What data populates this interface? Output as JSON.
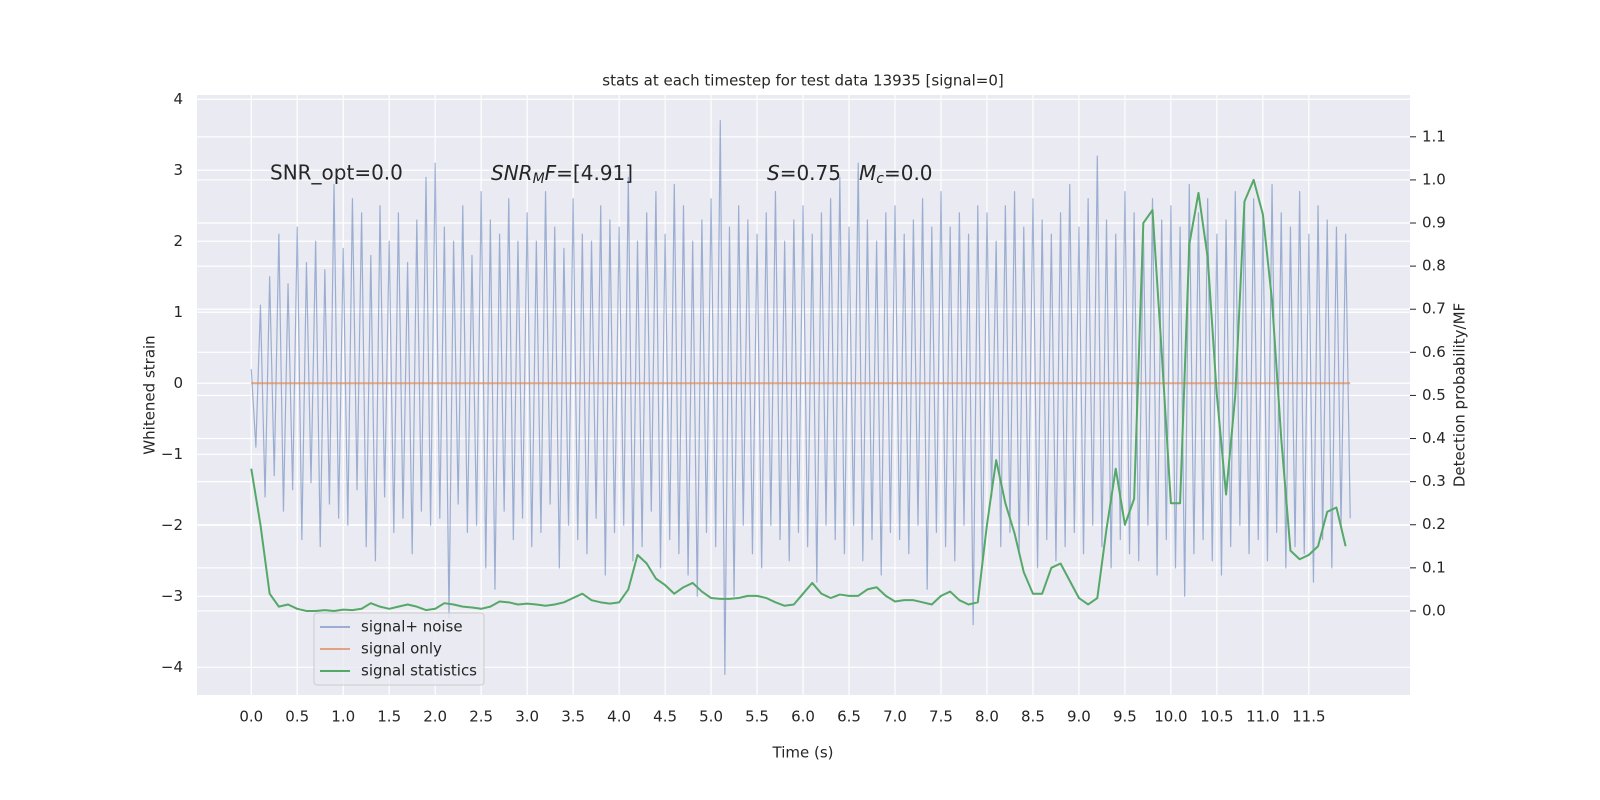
{
  "chart_data": {
    "type": "line",
    "title": "stats at each timestep for test data 13935 [signal=0]",
    "xlabel": "Time (s)",
    "ylabel": "Whitened strain",
    "y2label": "Detection probability/MF",
    "annotations": {
      "snr_opt": "SNR_opt=0.0",
      "snr_mf": [
        "SNR",
        "M",
        "F",
        "=[4.91]"
      ],
      "s": [
        "S",
        "=0.75"
      ],
      "mc": [
        "M",
        "c",
        "=0.0"
      ]
    },
    "xlim": [
      -0.59,
      12.6
    ],
    "ylim": [
      -4.39,
      4.06
    ],
    "y2lim": [
      -0.195,
      1.197
    ],
    "xticks": [
      {
        "value": 0,
        "label": "0.0"
      },
      {
        "value": 0.5,
        "label": "0.5"
      },
      {
        "value": 1,
        "label": "1.0"
      },
      {
        "value": 1.5,
        "label": "1.5"
      },
      {
        "value": 2,
        "label": "2.0"
      },
      {
        "value": 2.5,
        "label": "2.5"
      },
      {
        "value": 3,
        "label": "3.0"
      },
      {
        "value": 3.5,
        "label": "3.5"
      },
      {
        "value": 4,
        "label": "4.0"
      },
      {
        "value": 4.5,
        "label": "4.5"
      },
      {
        "value": 5,
        "label": "5.0"
      },
      {
        "value": 5.5,
        "label": "5.5"
      },
      {
        "value": 6,
        "label": "6.0"
      },
      {
        "value": 6.5,
        "label": "6.5"
      },
      {
        "value": 7,
        "label": "7.0"
      },
      {
        "value": 7.5,
        "label": "7.5"
      },
      {
        "value": 8,
        "label": "8.0"
      },
      {
        "value": 8.5,
        "label": "8.5"
      },
      {
        "value": 9,
        "label": "9.0"
      },
      {
        "value": 9.5,
        "label": "9.5"
      },
      {
        "value": 10,
        "label": "10.0"
      },
      {
        "value": 10.5,
        "label": "10.5"
      },
      {
        "value": 11,
        "label": "11.0"
      },
      {
        "value": 11.5,
        "label": "11.5"
      }
    ],
    "yticks": [
      {
        "value": -4,
        "label": "−4"
      },
      {
        "value": -3,
        "label": "−3"
      },
      {
        "value": -2,
        "label": "−2"
      },
      {
        "value": -1,
        "label": "−1"
      },
      0,
      1,
      2,
      3,
      4
    ],
    "y2ticks": [
      {
        "value": 0,
        "label": "0.0"
      },
      {
        "value": 0.1,
        "label": "0.1"
      },
      {
        "value": 0.2,
        "label": "0.2"
      },
      {
        "value": 0.3,
        "label": "0.3"
      },
      {
        "value": 0.4,
        "label": "0.4"
      },
      {
        "value": 0.5,
        "label": "0.5"
      },
      {
        "value": 0.6,
        "label": "0.6"
      },
      {
        "value": 0.7,
        "label": "0.7"
      },
      {
        "value": 0.8,
        "label": "0.8"
      },
      {
        "value": 0.9,
        "label": "0.9"
      },
      {
        "value": 1,
        "label": "1.0"
      },
      {
        "value": 1.1,
        "label": "1.1"
      }
    ],
    "grid": true,
    "legend": "lower left",
    "series": [
      {
        "name": "signal+ noise",
        "color": "#4c72b0",
        "opacity": 0.5,
        "x": [
          0,
          0.05,
          0.1,
          0.15,
          0.2,
          0.25,
          0.3,
          0.35,
          0.4,
          0.45,
          0.5,
          0.55,
          0.6,
          0.65,
          0.7,
          0.75,
          0.8,
          0.85,
          0.9,
          0.95,
          1,
          1.05,
          1.1,
          1.15,
          1.2,
          1.25,
          1.3,
          1.35,
          1.4,
          1.45,
          1.5,
          1.55,
          1.6,
          1.65,
          1.7,
          1.75,
          1.8,
          1.85,
          1.9,
          1.95,
          2,
          2.05,
          2.1,
          2.15,
          2.2,
          2.25,
          2.3,
          2.35,
          2.4,
          2.45,
          2.5,
          2.55,
          2.6,
          2.65,
          2.7,
          2.75,
          2.8,
          2.85,
          2.9,
          2.95,
          3,
          3.05,
          3.1,
          3.15,
          3.2,
          3.25,
          3.3,
          3.35,
          3.4,
          3.45,
          3.5,
          3.55,
          3.6,
          3.65,
          3.7,
          3.75,
          3.8,
          3.85,
          3.9,
          3.95,
          4,
          4.05,
          4.1,
          4.15,
          4.2,
          4.25,
          4.3,
          4.35,
          4.4,
          4.45,
          4.5,
          4.55,
          4.6,
          4.65,
          4.7,
          4.75,
          4.8,
          4.85,
          4.9,
          4.95,
          5,
          5.05,
          5.1,
          5.15,
          5.2,
          5.25,
          5.3,
          5.35,
          5.4,
          5.45,
          5.5,
          5.55,
          5.6,
          5.65,
          5.7,
          5.75,
          5.8,
          5.85,
          5.9,
          5.95,
          6,
          6.05,
          6.1,
          6.15,
          6.2,
          6.25,
          6.3,
          6.35,
          6.4,
          6.45,
          6.5,
          6.55,
          6.6,
          6.65,
          6.7,
          6.75,
          6.8,
          6.85,
          6.9,
          6.95,
          7,
          7.05,
          7.1,
          7.15,
          7.2,
          7.25,
          7.3,
          7.35,
          7.4,
          7.45,
          7.5,
          7.55,
          7.6,
          7.65,
          7.7,
          7.75,
          7.8,
          7.85,
          7.9,
          7.95,
          8,
          8.05,
          8.1,
          8.15,
          8.2,
          8.25,
          8.3,
          8.35,
          8.4,
          8.45,
          8.5,
          8.55,
          8.6,
          8.65,
          8.7,
          8.75,
          8.8,
          8.85,
          8.9,
          8.95,
          9,
          9.05,
          9.1,
          9.15,
          9.2,
          9.25,
          9.3,
          9.35,
          9.4,
          9.45,
          9.5,
          9.55,
          9.6,
          9.65,
          9.7,
          9.75,
          9.8,
          9.85,
          9.9,
          9.95,
          10,
          10.05,
          10.1,
          10.15,
          10.2,
          10.25,
          10.3,
          10.35,
          10.4,
          10.45,
          10.5,
          10.55,
          10.6,
          10.65,
          10.7,
          10.75,
          10.8,
          10.85,
          10.9,
          10.95,
          11,
          11.05,
          11.1,
          11.15,
          11.2,
          11.25,
          11.3,
          11.35,
          11.4,
          11.45,
          11.5,
          11.55,
          11.6,
          11.65,
          11.7,
          11.75,
          11.8,
          11.85,
          11.9,
          11.95
        ],
        "values": [
          0.2,
          -0.9,
          1.1,
          -1.6,
          1.5,
          -1.3,
          2.1,
          -1.8,
          1.4,
          -1.5,
          2.2,
          -2.2,
          1.7,
          -1.4,
          2.0,
          -2.3,
          1.6,
          -1.7,
          2.8,
          -1.9,
          1.9,
          -2.0,
          2.6,
          -1.5,
          2.4,
          -2.3,
          1.8,
          -2.5,
          2.5,
          -1.6,
          2.0,
          -2.1,
          2.4,
          -1.9,
          1.7,
          -2.4,
          2.3,
          -1.8,
          2.9,
          -2.0,
          3.1,
          -1.9,
          2.2,
          -3.3,
          2.0,
          -1.7,
          2.5,
          -2.1,
          1.8,
          -2.0,
          2.7,
          -2.6,
          2.3,
          -2.9,
          2.1,
          -1.8,
          2.6,
          -2.2,
          2.0,
          -1.9,
          2.4,
          -2.3,
          2.0,
          -2.1,
          2.7,
          -1.7,
          2.2,
          -2.6,
          1.9,
          -2.0,
          2.6,
          -2.2,
          2.1,
          -2.4,
          2.0,
          -1.9,
          2.5,
          -2.7,
          2.3,
          -2.1,
          2.2,
          -2.0,
          2.9,
          -2.5,
          2.0,
          -2.3,
          2.4,
          -1.8,
          2.7,
          -2.6,
          2.1,
          -2.2,
          2.8,
          -2.4,
          2.5,
          -2.7,
          2.0,
          -3.0,
          2.3,
          -2.1,
          2.6,
          -2.3,
          3.7,
          -4.1,
          2.2,
          -3.0,
          2.5,
          -2.0,
          2.3,
          -2.4,
          2.1,
          -2.6,
          2.4,
          -2.0,
          2.7,
          -2.2,
          2.0,
          -2.5,
          2.3,
          -2.1,
          2.5,
          -2.3,
          2.1,
          -2.8,
          2.4,
          -2.0,
          2.6,
          -2.2,
          2.9,
          -2.4,
          2.2,
          -2.0,
          3.1,
          -2.5,
          2.3,
          -2.2,
          2.0,
          -2.7,
          2.4,
          -2.1,
          2.5,
          -2.2,
          2.1,
          -2.4,
          2.3,
          -2.0,
          2.6,
          -2.9,
          2.2,
          -2.1,
          2.7,
          -2.3,
          2.2,
          -2.5,
          2.4,
          -2.0,
          2.1,
          -3.4,
          2.5,
          -2.6,
          2.4,
          -1.6,
          2.0,
          -2.3,
          2.5,
          -2.1,
          2.7,
          -2.4,
          2.2,
          -2.0,
          2.6,
          -2.6,
          2.3,
          -2.2,
          2.1,
          -2.5,
          2.4,
          -2.3,
          2.8,
          -2.1,
          2.2,
          -2.4,
          2.6,
          -2.0,
          3.2,
          -2.3,
          2.3,
          -2.6,
          2.1,
          -2.2,
          2.7,
          -2.4,
          2.4,
          -2.5,
          2.2,
          -2.0,
          2.6,
          -2.7,
          2.3,
          -2.2,
          2.5,
          -2.6,
          2.2,
          -3.0,
          2.8,
          -2.4,
          2.4,
          -2.2,
          2.6,
          -2.5,
          2.1,
          -2.7,
          2.3,
          -2.3,
          2.7,
          -2.0,
          2.5,
          -2.4,
          2.6,
          -2.2,
          2.3,
          -2.5,
          2.8,
          -2.1,
          2.4,
          -2.6,
          2.2,
          -2.3,
          2.7,
          -2.4,
          2.1,
          -2.8,
          2.5,
          -2.2,
          2.3,
          -2.6,
          2.2,
          -2.0,
          2.1,
          -1.9
        ]
      },
      {
        "name": "signal only",
        "color": "#dd8452",
        "opacity": 0.7,
        "x": [
          0,
          11.95
        ],
        "values": [
          0,
          0
        ]
      },
      {
        "name": "signal statistics",
        "color": "#55a868",
        "opacity": 1,
        "axis": "y2",
        "x": [
          0,
          0.1,
          0.2,
          0.3,
          0.4,
          0.5,
          0.6,
          0.7,
          0.8,
          0.9,
          1,
          1.1,
          1.2,
          1.3,
          1.4,
          1.5,
          1.6,
          1.7,
          1.8,
          1.9,
          2,
          2.1,
          2.2,
          2.3,
          2.4,
          2.5,
          2.6,
          2.7,
          2.8,
          2.9,
          3,
          3.1,
          3.2,
          3.3,
          3.4,
          3.5,
          3.6,
          3.7,
          3.8,
          3.9,
          4,
          4.1,
          4.2,
          4.3,
          4.4,
          4.5,
          4.6,
          4.7,
          4.8,
          4.9,
          5,
          5.1,
          5.2,
          5.3,
          5.4,
          5.5,
          5.6,
          5.7,
          5.8,
          5.9,
          6,
          6.1,
          6.2,
          6.3,
          6.4,
          6.5,
          6.6,
          6.7,
          6.8,
          6.9,
          7,
          7.1,
          7.2,
          7.3,
          7.4,
          7.5,
          7.6,
          7.7,
          7.8,
          7.9,
          8,
          8.1,
          8.2,
          8.3,
          8.4,
          8.5,
          8.6,
          8.7,
          8.8,
          8.9,
          9,
          9.1,
          9.2,
          9.3,
          9.4,
          9.5,
          9.6,
          9.7,
          9.8,
          9.9,
          10,
          10.1,
          10.2,
          10.3,
          10.4,
          10.5,
          10.6,
          10.7,
          10.8,
          10.9,
          11,
          11.1,
          11.2,
          11.3,
          11.4,
          11.5,
          11.6,
          11.7,
          11.8,
          11.9
        ],
        "values": [
          0.33,
          0.2,
          0.04,
          0.01,
          0.015,
          0.005,
          0,
          0,
          0.002,
          0,
          0.003,
          0.002,
          0.005,
          0.018,
          0.01,
          0.005,
          0.01,
          0.015,
          0.01,
          0.002,
          0.005,
          0.018,
          0.015,
          0.01,
          0.008,
          0.005,
          0.01,
          0.022,
          0.02,
          0.015,
          0.017,
          0.015,
          0.012,
          0.015,
          0.02,
          0.03,
          0.04,
          0.025,
          0.02,
          0.017,
          0.02,
          0.05,
          0.13,
          0.11,
          0.075,
          0.06,
          0.04,
          0.055,
          0.065,
          0.045,
          0.03,
          0.028,
          0.028,
          0.03,
          0.035,
          0.035,
          0.03,
          0.02,
          0.012,
          0.015,
          0.04,
          0.065,
          0.04,
          0.03,
          0.038,
          0.035,
          0.035,
          0.05,
          0.055,
          0.035,
          0.022,
          0.025,
          0.025,
          0.02,
          0.015,
          0.035,
          0.045,
          0.025,
          0.015,
          0.02,
          0.2,
          0.35,
          0.25,
          0.18,
          0.09,
          0.04,
          0.04,
          0.1,
          0.11,
          0.07,
          0.03,
          0.015,
          0.03,
          0.19,
          0.33,
          0.2,
          0.26,
          0.9,
          0.93,
          0.6,
          0.25,
          0.25,
          0.85,
          0.97,
          0.82,
          0.5,
          0.27,
          0.5,
          0.95,
          1.0,
          0.92,
          0.72,
          0.4,
          0.14,
          0.12,
          0.13,
          0.15,
          0.23,
          0.24,
          0.15
        ]
      }
    ]
  }
}
